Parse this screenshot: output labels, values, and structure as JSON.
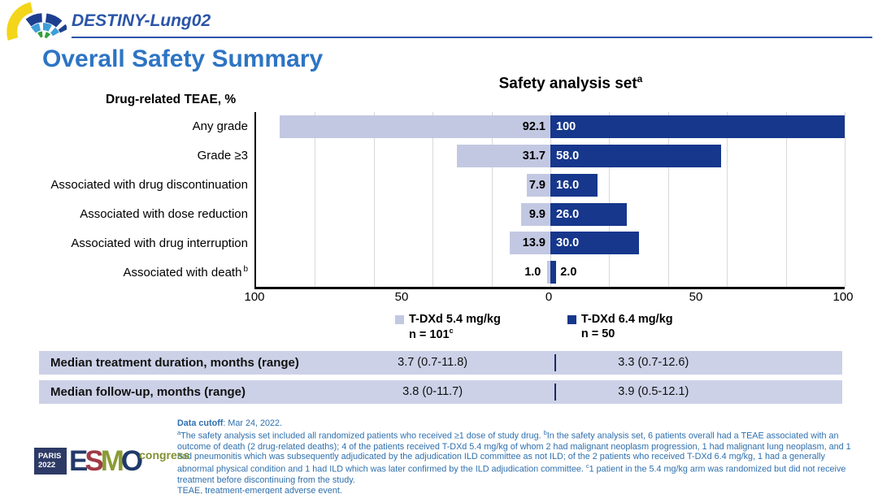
{
  "header": {
    "study": "DESTINY-Lung02",
    "logo": "destiny-fan-logo"
  },
  "page_title": "Overall Safety Summary",
  "colors": {
    "light_bar": "#c3c8e2",
    "dark_bar": "#16378c",
    "title_blue": "#2d74c4",
    "header_blue": "#2b55a8",
    "footnote_blue": "#2e6fad",
    "table_bg": "#ccd1e7",
    "gridline": "#d9d9d9"
  },
  "chart_data": {
    "type": "bar",
    "orientation": "horizontal-butterfly",
    "title": "Safety analysis set",
    "title_sup": "a",
    "axis_label": "Drug-related TEAE, %",
    "categories": [
      {
        "label": "Any grade",
        "sup": ""
      },
      {
        "label": "Grade ≥3",
        "sup": ""
      },
      {
        "label": "Associated with drug discontinuation",
        "sup": ""
      },
      {
        "label": "Associated with dose reduction",
        "sup": ""
      },
      {
        "label": "Associated with drug interruption",
        "sup": ""
      },
      {
        "label": "Associated with death",
        "sup": "b"
      }
    ],
    "series": [
      {
        "name": "T-DXd 5.4 mg/kg",
        "n_label": "n = 101",
        "n_sup": "c",
        "side": "left",
        "color": "#c3c8e2",
        "values": [
          92.1,
          31.7,
          7.9,
          9.9,
          13.9,
          1.0
        ],
        "value_labels": [
          "92.1",
          "31.7",
          "7.9",
          "9.9",
          "13.9",
          "1.0"
        ]
      },
      {
        "name": "T-DXd 6.4 mg/kg",
        "n_label": "n = 50",
        "n_sup": "",
        "side": "right",
        "color": "#16378c",
        "values": [
          100,
          58.0,
          16.0,
          26.0,
          30.0,
          2.0
        ],
        "value_labels": [
          "100",
          "58.0",
          "16.0",
          "26.0",
          "30.0",
          "2.0"
        ]
      }
    ],
    "xlim": [
      -100,
      100
    ],
    "ticks": [
      {
        "v": -100,
        "label": "100"
      },
      {
        "v": -50,
        "label": "50"
      },
      {
        "v": 0,
        "label": "0"
      },
      {
        "v": 50,
        "label": "50"
      },
      {
        "v": 100,
        "label": "100"
      }
    ],
    "gridline_values": [
      -80,
      -60,
      -40,
      -20,
      0,
      20,
      40,
      60,
      80,
      100
    ],
    "grid": true,
    "legend_position": "bottom"
  },
  "table": {
    "rows": [
      {
        "label": "Median treatment duration, months (range)",
        "v1": "3.7 (0.7-11.8)",
        "v2": "3.3 (0.7-12.6)"
      },
      {
        "label": "Median follow-up, months (range)",
        "v1": "3.8 (0-11.7)",
        "v2": "3.9 (0.5-12.1)"
      }
    ]
  },
  "footnotes": {
    "lines": [
      {
        "segments": [
          {
            "text": "Data cutoff",
            "bold": true
          },
          {
            "text": ": Mar 24, 2022."
          }
        ]
      },
      {
        "segments": [
          {
            "sup": "a"
          },
          {
            "text": "The safety analysis set included all randomized patients who received ≥1 dose of study drug. "
          },
          {
            "sup": "b"
          },
          {
            "text": "In the safety analysis set, 6 patients overall had a TEAE associated with an outcome of death (2 drug-related deaths); 4 of the patients received T-DXd 5.4 mg/kg of whom 2 had malignant neoplasm progression, 1 had malignant lung neoplasm, and 1 had pneumonitis which was subsequently adjudicated by the adjudication ILD committee as not ILD; of the 2 patients who received T-DXd 6.4 mg/kg, 1 had a generally abnormal physical condition and 1 had ILD which was later confirmed by the ILD adjudication committee. "
          },
          {
            "sup": "c"
          },
          {
            "text": "1 patient in the 5.4 mg/kg arm was randomized but did not receive treatment before discontinuing from the study."
          }
        ]
      },
      {
        "segments": [
          {
            "text": "TEAE, treatment-emergent adverse event."
          }
        ]
      }
    ]
  },
  "footer": {
    "badge_line1": "PARIS",
    "badge_line2": "2022",
    "letters": [
      {
        "ch": "E",
        "color": "#233a6a"
      },
      {
        "ch": "S",
        "color": "#a03a46"
      },
      {
        "ch": "M",
        "color": "#8a9b35"
      },
      {
        "ch": "O",
        "color": "#1f3a6a"
      }
    ],
    "congress": "congress"
  }
}
